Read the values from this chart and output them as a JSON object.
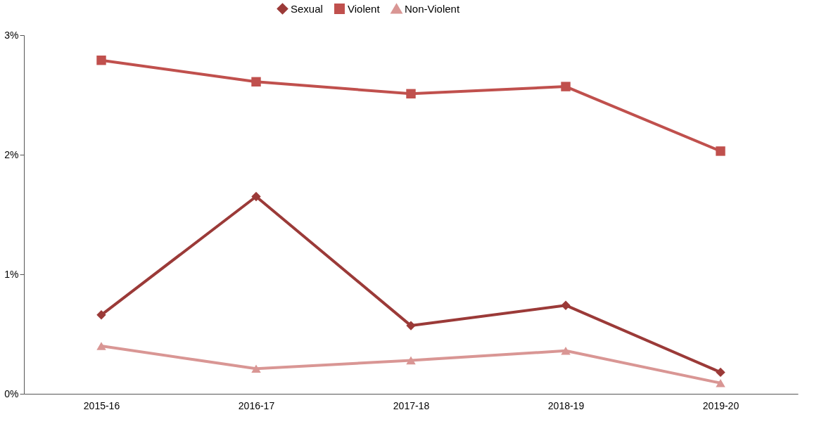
{
  "chart_data": {
    "type": "line",
    "categories": [
      "2015-16",
      "2016-17",
      "2017-18",
      "2018-19",
      "2019-20"
    ],
    "series": [
      {
        "name": "Sexual",
        "color": "#9b3a38",
        "marker": "diamond",
        "values": [
          0.66,
          1.65,
          0.57,
          0.74,
          0.18
        ]
      },
      {
        "name": "Violent",
        "color": "#c0504d",
        "marker": "square",
        "values": [
          2.79,
          2.61,
          2.51,
          2.57,
          2.03
        ]
      },
      {
        "name": "Non-Violent",
        "color": "#d99694",
        "marker": "triangle",
        "values": [
          0.4,
          0.21,
          0.28,
          0.36,
          0.09
        ]
      }
    ],
    "ylim": [
      0,
      3
    ],
    "yticks": [
      {
        "value": 0,
        "label": "0%"
      },
      {
        "value": 1,
        "label": "1%"
      },
      {
        "value": 2,
        "label": "2%"
      },
      {
        "value": 3,
        "label": "3%"
      }
    ],
    "grid": false,
    "legend": "top",
    "line_style": "solid"
  }
}
